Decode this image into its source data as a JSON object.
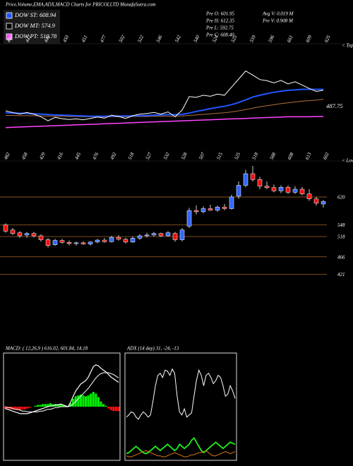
{
  "header": {
    "title": "Price,Volume,EMA,ADX,MACD Charts for PRICOLLTD MunafaSutra.com"
  },
  "legend": [
    {
      "label": "DOW ST: 608.94",
      "color": "#2255ff"
    },
    {
      "label": "DOW MT: 574.9",
      "color": "#000000"
    },
    {
      "label": "DOW PT: 510.78",
      "color": "#ff44ff"
    }
  ],
  "info": [
    "Pre O: 601.95",
    "Pre H: 612.35",
    "Pre L: 592.75",
    "Pre C: 608.40",
    "Avg V: 0.019 M",
    "Pre V: 0.908 M"
  ],
  "chart_data": [
    {
      "type": "line",
      "side_label": "< Tops",
      "annotation": "487.75",
      "ylim": [
        380,
        760
      ],
      "peaks": [
        460,
        447,
        445,
        450,
        451,
        477,
        502,
        522,
        546,
        542,
        540,
        524,
        525,
        559,
        596,
        661,
        609,
        625
      ],
      "series": [
        {
          "color": "#ffffff",
          "values": [
            532,
            526,
            520,
            526,
            520,
            510,
            495,
            508,
            503,
            500,
            502,
            499,
            504,
            509,
            505,
            516,
            511,
            504,
            514,
            520,
            522,
            526,
            520,
            528,
            510,
            535,
            585,
            582,
            590,
            586,
            594,
            590,
            620,
            650,
            680,
            665,
            648,
            644,
            636,
            645,
            632,
            640,
            628,
            615,
            604,
            608.4
          ]
        },
        {
          "color": "#2255ff",
          "values": [
            525,
            524,
            523,
            522,
            521,
            520,
            518,
            517,
            516,
            515,
            514,
            513,
            512,
            512,
            512,
            512,
            513,
            513,
            513,
            514,
            515,
            516,
            517,
            518,
            518,
            519,
            524,
            530,
            535,
            540,
            545,
            549,
            555,
            563,
            573,
            583,
            590,
            596,
            601,
            605,
            608,
            610,
            612,
            612,
            612,
            612
          ]
        },
        {
          "color": "#b07040",
          "values": [
            515,
            515,
            514,
            514,
            514,
            513,
            513,
            512,
            512,
            511,
            511,
            510,
            510,
            510,
            510,
            510,
            510,
            510,
            511,
            511,
            511,
            512,
            512,
            512,
            512,
            513,
            515,
            517,
            519,
            521,
            523,
            525,
            528,
            532,
            537,
            542,
            547,
            551,
            555,
            559,
            562,
            565,
            568,
            570,
            572,
            575
          ]
        },
        {
          "color": "#ff44ff",
          "values": [
            470,
            471,
            472,
            473,
            474,
            475,
            476,
            477,
            478,
            479,
            480,
            481,
            482,
            483,
            484,
            485,
            486,
            487,
            488,
            489,
            490,
            491,
            492,
            493,
            494,
            495,
            496,
            497,
            498,
            499,
            500,
            501,
            502,
            503,
            504,
            505,
            506,
            507,
            508,
            509,
            510,
            510,
            510,
            510,
            511,
            511
          ]
        }
      ]
    },
    {
      "type": "candlestick",
      "side_label": "< Lows",
      "ylim": [
        400,
        700
      ],
      "up_color": "#3366ff",
      "down_color": "#ee1111",
      "troughs": [
        482,
        458,
        429,
        416,
        445,
        476,
        492,
        518,
        527,
        532,
        528,
        507,
        515,
        525,
        518,
        588,
        608,
        613,
        602
      ],
      "levels": [
        620,
        548,
        518,
        466,
        421
      ],
      "open": [
        548,
        535,
        528,
        522,
        526,
        520,
        510,
        497,
        508,
        503,
        500,
        502,
        499,
        504,
        509,
        505,
        516,
        511,
        504,
        514,
        520,
        522,
        526,
        520,
        526,
        510,
        545,
        585,
        582,
        590,
        586,
        594,
        590,
        622,
        650,
        680,
        665,
        648,
        644,
        636,
        645,
        632,
        640,
        628,
        615,
        601.95
      ],
      "high": [
        552,
        540,
        532,
        530,
        530,
        524,
        514,
        512,
        512,
        508,
        505,
        506,
        506,
        512,
        514,
        520,
        522,
        515,
        518,
        524,
        528,
        530,
        528,
        532,
        530,
        540,
        592,
        598,
        596,
        600,
        598,
        602,
        626,
        660,
        690,
        700,
        672,
        660,
        652,
        650,
        650,
        648,
        646,
        640,
        620,
        612.35
      ],
      "low": [
        528,
        522,
        515,
        515,
        516,
        505,
        490,
        494,
        500,
        496,
        495,
        497,
        495,
        501,
        502,
        503,
        508,
        500,
        502,
        510,
        516,
        518,
        517,
        518,
        505,
        506,
        540,
        575,
        578,
        584,
        582,
        586,
        588,
        615,
        645,
        660,
        640,
        640,
        632,
        630,
        628,
        628,
        624,
        610,
        598,
        592.75
      ],
      "close": [
        532,
        526,
        520,
        526,
        520,
        510,
        495,
        508,
        503,
        500,
        502,
        499,
        504,
        509,
        505,
        516,
        511,
        504,
        514,
        520,
        522,
        526,
        520,
        528,
        510,
        535,
        585,
        582,
        590,
        586,
        594,
        590,
        620,
        650,
        680,
        665,
        648,
        644,
        636,
        645,
        632,
        640,
        628,
        615,
        604,
        608.4
      ]
    },
    {
      "type": "macd",
      "label": "MACD: ( 12,26,9 ) 616.02, 601.84, 14.18",
      "ylim": [
        -60,
        60
      ],
      "macd": [
        -2,
        -3,
        -4,
        -5,
        -6,
        -7,
        -8,
        -8,
        -8,
        -8,
        -7,
        -6,
        -5,
        -4,
        -3,
        -2,
        -1,
        0,
        1,
        1,
        2,
        2,
        3,
        2,
        1,
        0,
        5,
        12,
        18,
        22,
        26,
        28,
        30,
        34,
        40,
        46,
        48,
        47,
        44,
        42,
        40,
        37,
        34,
        32,
        30,
        28
      ],
      "signal": [
        0,
        -1,
        -1,
        -2,
        -3,
        -3,
        -4,
        -5,
        -5,
        -6,
        -6,
        -6,
        -6,
        -6,
        -5,
        -5,
        -4,
        -3,
        -3,
        -2,
        -1,
        -1,
        0,
        0,
        0,
        0,
        1,
        3,
        6,
        9,
        12,
        15,
        18,
        21,
        25,
        29,
        33,
        36,
        38,
        39,
        39,
        39,
        38,
        37,
        35,
        33
      ],
      "histogram": [
        -2,
        -2,
        -3,
        -3,
        -3,
        -4,
        -4,
        -3,
        -3,
        -2,
        -1,
        0,
        1,
        2,
        2,
        3,
        3,
        3,
        4,
        3,
        3,
        3,
        3,
        2,
        1,
        0,
        4,
        9,
        12,
        13,
        14,
        13,
        12,
        13,
        15,
        17,
        15,
        11,
        6,
        3,
        1,
        -2,
        -4,
        -5,
        -5,
        -5
      ]
    },
    {
      "type": "adx",
      "label": "ADX (14 day) 31, -24, -13",
      "ylim": [
        0,
        100
      ],
      "series": [
        {
          "color": "#ffffff",
          "values": [
            40,
            42,
            45,
            44,
            40,
            38,
            42,
            45,
            43,
            40,
            42,
            55,
            70,
            80,
            82,
            78,
            85,
            84,
            80,
            86,
            82,
            60,
            45,
            42,
            48,
            40,
            42,
            44,
            60,
            75,
            85,
            80,
            70,
            80,
            82,
            78,
            72,
            75,
            80,
            78,
            70,
            60,
            62,
            70,
            65,
            58
          ]
        },
        {
          "color": "#22ee22",
          "values": [
            5,
            6,
            8,
            10,
            12,
            10,
            8,
            6,
            5,
            6,
            8,
            10,
            12,
            10,
            8,
            10,
            12,
            14,
            12,
            10,
            8,
            10,
            14,
            12,
            10,
            12,
            14,
            18,
            20,
            16,
            12,
            8,
            6,
            8,
            10,
            12,
            14,
            16,
            14,
            12,
            10,
            12,
            14,
            16,
            15,
            14
          ]
        },
        {
          "color": "#dd7711",
          "values": [
            3,
            2,
            2,
            3,
            4,
            5,
            6,
            7,
            8,
            7,
            6,
            5,
            4,
            3,
            3,
            2,
            2,
            3,
            4,
            5,
            6,
            5,
            4,
            3,
            2,
            2,
            3,
            4,
            4,
            5,
            6,
            6,
            7,
            8,
            6,
            4,
            3,
            3,
            4,
            5,
            6,
            7,
            6,
            5,
            6,
            7
          ]
        }
      ]
    }
  ]
}
